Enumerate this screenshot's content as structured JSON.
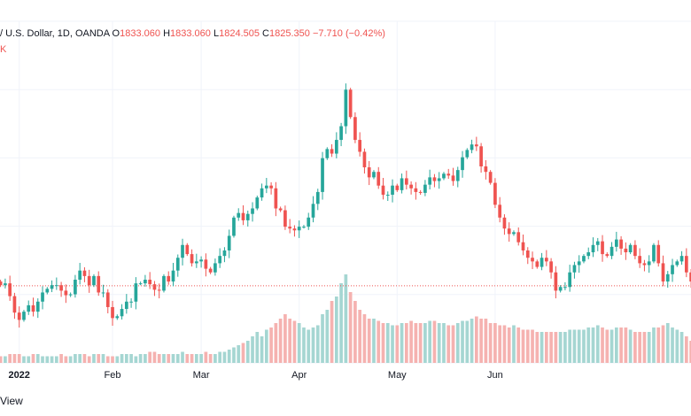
{
  "header": {
    "symbol": "/ U.S. Dollar, 1D, OANDA",
    "o_label": "O",
    "o_value": "1833.060",
    "h_label": "H",
    "h_value": "1833.060",
    "l_label": "L",
    "l_value": "1824.505",
    "c_label": "C",
    "c_value": "1825.350",
    "change": "−7.710 (−0.42%)"
  },
  "sub_label": "K",
  "footer_text": "View",
  "colors": {
    "up": "#26a69a",
    "down": "#ef5350",
    "vol_up": "#a5d6d2",
    "vol_down": "#f5b2b0",
    "grid": "#f0f3fa",
    "price_line": "#ef5350"
  },
  "chart_data": {
    "type": "candlestick",
    "title": "/ U.S. Dollar, 1D, OANDA",
    "x_ticks": [
      {
        "label": "2022",
        "date": "2022-01-03",
        "bold": true
      },
      {
        "label": "Feb",
        "date": "2022-02-01",
        "bold": false
      },
      {
        "label": "Mar",
        "date": "2022-03-01",
        "bold": false
      },
      {
        "label": "Apr",
        "date": "2022-04-01",
        "bold": false
      },
      {
        "label": "May",
        "date": "2022-05-02",
        "bold": false
      },
      {
        "label": "Jun",
        "date": "2022-06-01",
        "bold": false
      }
    ],
    "ylim": [
      1770,
      2080
    ],
    "last_close": 1825.35,
    "grid": true,
    "closes": [
      1826,
      1828,
      1814,
      1796,
      1788,
      1797,
      1804,
      1797,
      1808,
      1818,
      1822,
      1826,
      1826,
      1820,
      1815,
      1816,
      1832,
      1842,
      1836,
      1826,
      1836,
      1818,
      1818,
      1802,
      1790,
      1792,
      1800,
      1808,
      1808,
      1828,
      1828,
      1832,
      1827,
      1821,
      1820,
      1836,
      1830,
      1842,
      1856,
      1870,
      1860,
      1850,
      1852,
      1854,
      1844,
      1840,
      1850,
      1858,
      1864,
      1880,
      1900,
      1905,
      1897,
      1904,
      1910,
      1922,
      1932,
      1935,
      1932,
      1910,
      1908,
      1890,
      1888,
      1886,
      1890,
      1890,
      1900,
      1915,
      1928,
      1965,
      1975,
      1970,
      1985,
      2000,
      2040,
      2010,
      1985,
      1972,
      1955,
      1944,
      1950,
      1935,
      1925,
      1925,
      1935,
      1930,
      1943,
      1936,
      1932,
      1928,
      1927,
      1936,
      1944,
      1940,
      1943,
      1948,
      1946,
      1940,
      1952,
      1966,
      1974,
      1980,
      1978,
      1956,
      1950,
      1938,
      1914,
      1900,
      1888,
      1882,
      1884,
      1873,
      1864,
      1856,
      1852,
      1846,
      1856,
      1852,
      1840,
      1820,
      1824,
      1824,
      1840,
      1848,
      1852,
      1858,
      1862,
      1870,
      1874,
      1860,
      1858,
      1868,
      1876,
      1866,
      1862,
      1870,
      1858,
      1850,
      1848,
      1852,
      1870,
      1850,
      1830,
      1838,
      1848,
      1852,
      1858,
      1840,
      1830,
      1825.35
    ],
    "volume": [
      3,
      3,
      4,
      4,
      4,
      3,
      3,
      4,
      4,
      3,
      3,
      3,
      3,
      4,
      3,
      3,
      4,
      4,
      4,
      3,
      4,
      4,
      4,
      3,
      3,
      3,
      4,
      4,
      4,
      3,
      4,
      4,
      5,
      5,
      4,
      4,
      4,
      4,
      4,
      5,
      4,
      4,
      4,
      4,
      5,
      4,
      4,
      5,
      5,
      6,
      7,
      8,
      9,
      10,
      12,
      14,
      12,
      15,
      16,
      18,
      20,
      22,
      20,
      19,
      18,
      16,
      15,
      16,
      17,
      22,
      24,
      28,
      30,
      36,
      40,
      32,
      28,
      24,
      22,
      20,
      20,
      19,
      18,
      18,
      17,
      17,
      18,
      18,
      19,
      18,
      18,
      18,
      19,
      19,
      18,
      18,
      17,
      17,
      18,
      19,
      19,
      20,
      21,
      20,
      20,
      18,
      18,
      17,
      17,
      16,
      17,
      16,
      15,
      15,
      15,
      14,
      14,
      14,
      14,
      14,
      14,
      14,
      15,
      15,
      15,
      15,
      16,
      16,
      17,
      16,
      15,
      15,
      16,
      16,
      16,
      15,
      14,
      14,
      14,
      14,
      16,
      16,
      17,
      18,
      16,
      15,
      14,
      12,
      10,
      8
    ],
    "volume_max": 40
  }
}
